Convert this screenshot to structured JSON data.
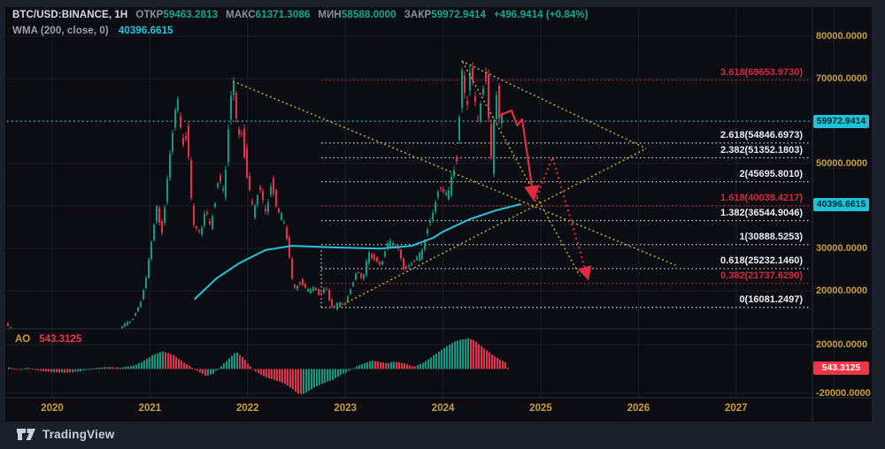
{
  "header": {
    "symbol": "BTC/USD:BINANCE, 1H",
    "ohlc": [
      {
        "label": "ОТКР",
        "value": "59463.2813"
      },
      {
        "label": "МАКС",
        "value": "61371.3086"
      },
      {
        "label": "МИН",
        "value": "58588.0000"
      },
      {
        "label": "ЗАКР",
        "value": "59972.9414"
      }
    ],
    "change": "+496.9414 (+0.84%)",
    "indicator": {
      "name": "WMA (200, close, 0)",
      "value": "40396.6615"
    }
  },
  "ao_panel": {
    "label": "AO",
    "value": "543.3125",
    "badge": "543.3125",
    "scale": [
      {
        "text": "20000.0000",
        "v": 20000
      },
      {
        "text": "-20000.0000",
        "v": -20000
      }
    ]
  },
  "price_scale": {
    "labels": [
      {
        "text": "80000.0000",
        "p": 80000
      },
      {
        "text": "70000.0000",
        "p": 70000
      },
      {
        "text": "50000.0000",
        "p": 50000
      },
      {
        "text": "30000.0000",
        "p": 30000
      },
      {
        "text": "20000.0000",
        "p": 20000
      }
    ],
    "close_badge": {
      "text": "59972.9414",
      "p": 59972.9414
    },
    "wma_badge": {
      "text": "40396.6615",
      "p": 40396.6615
    }
  },
  "time_axis": {
    "years": [
      {
        "label": "2020",
        "year": 2020
      },
      {
        "label": "2021",
        "year": 2021
      },
      {
        "label": "2022",
        "year": 2022
      },
      {
        "label": "2023",
        "year": 2023
      },
      {
        "label": "2024",
        "year": 2024
      },
      {
        "label": "2025",
        "year": 2025
      },
      {
        "label": "2026",
        "year": 2026
      },
      {
        "label": "2027",
        "year": 2027
      }
    ]
  },
  "watermark": {
    "brand": "TradingView"
  },
  "colors": {
    "background": "#0b0d12",
    "outer": "#1b202b",
    "grid": "#1c202c",
    "candle_up": "#0f9a81",
    "candle_down": "#e5314a",
    "wma": "#27c3de",
    "gold_axis": "#c99e3e",
    "teal_value": "#12a88e",
    "fib_white": "#eceef2",
    "fib_red": "#cf2b40",
    "trendline_yellow": "#b3a42c",
    "arrow_red": "#e02b42",
    "close_badge_bg": "#1cc1da",
    "ao_badge_bg": "#f23645"
  },
  "chart_data": {
    "type": "candlestick",
    "title": "BTC/USD:BINANCE",
    "interval": "1H",
    "x_axis_years": [
      2020,
      2021,
      2022,
      2023,
      2024,
      2025,
      2026,
      2027
    ],
    "price_axis_range": [
      11800,
      80000
    ],
    "current_price": 59972.9414,
    "price_keypoints": [
      [
        2019.45,
        13800
      ],
      [
        2019.62,
        10000
      ],
      [
        2019.8,
        8300
      ],
      [
        2019.95,
        7200
      ],
      [
        2020.05,
        9500
      ],
      [
        2020.13,
        10300
      ],
      [
        2020.22,
        5000
      ],
      [
        2020.35,
        9200
      ],
      [
        2020.5,
        9100
      ],
      [
        2020.62,
        9300
      ],
      [
        2020.72,
        11500
      ],
      [
        2020.82,
        13500
      ],
      [
        2020.9,
        17000
      ],
      [
        2020.97,
        23000
      ],
      [
        2021.02,
        32000
      ],
      [
        2021.07,
        40000
      ],
      [
        2021.12,
        34000
      ],
      [
        2021.18,
        46000
      ],
      [
        2021.23,
        56000
      ],
      [
        2021.28,
        64800
      ],
      [
        2021.33,
        55000
      ],
      [
        2021.38,
        58000
      ],
      [
        2021.44,
        37000
      ],
      [
        2021.52,
        32000
      ],
      [
        2021.57,
        39500
      ],
      [
        2021.62,
        35000
      ],
      [
        2021.7,
        47000
      ],
      [
        2021.76,
        43000
      ],
      [
        2021.82,
        61500
      ],
      [
        2021.86,
        69000
      ],
      [
        2021.9,
        58000
      ],
      [
        2021.94,
        57500
      ],
      [
        2022.0,
        47000
      ],
      [
        2022.06,
        37500
      ],
      [
        2022.12,
        44000
      ],
      [
        2022.18,
        39000
      ],
      [
        2022.24,
        45500
      ],
      [
        2022.3,
        39500
      ],
      [
        2022.36,
        36500
      ],
      [
        2022.42,
        30000
      ],
      [
        2022.47,
        20500
      ],
      [
        2022.53,
        22500
      ],
      [
        2022.6,
        20000
      ],
      [
        2022.68,
        20300
      ],
      [
        2022.74,
        19200
      ],
      [
        2022.8,
        21500
      ],
      [
        2022.85,
        16800
      ],
      [
        2022.89,
        15600
      ],
      [
        2022.94,
        17200
      ],
      [
        2023.0,
        16600
      ],
      [
        2023.06,
        21500
      ],
      [
        2023.12,
        24500
      ],
      [
        2023.18,
        22300
      ],
      [
        2023.24,
        28500
      ],
      [
        2023.3,
        28000
      ],
      [
        2023.36,
        26300
      ],
      [
        2023.42,
        30000
      ],
      [
        2023.48,
        31200
      ],
      [
        2023.54,
        29800
      ],
      [
        2023.6,
        26100
      ],
      [
        2023.66,
        25900
      ],
      [
        2023.72,
        27200
      ],
      [
        2023.78,
        28300
      ],
      [
        2023.84,
        34800
      ],
      [
        2023.88,
        37500
      ],
      [
        2023.94,
        43800
      ],
      [
        2024.0,
        42300
      ],
      [
        2024.06,
        43000
      ],
      [
        2024.1,
        47500
      ],
      [
        2024.14,
        52000
      ],
      [
        2024.17,
        63000
      ],
      [
        2024.2,
        73700
      ],
      [
        2024.24,
        62000
      ],
      [
        2024.28,
        70500
      ],
      [
        2024.32,
        64500
      ],
      [
        2024.36,
        61000
      ],
      [
        2024.4,
        66500
      ],
      [
        2024.44,
        71500
      ],
      [
        2024.47,
        62000
      ],
      [
        2024.5,
        49500
      ],
      [
        2024.53,
        62000
      ],
      [
        2024.56,
        67000
      ],
      [
        2024.585,
        56000
      ],
      [
        2024.6,
        59972.94
      ]
    ],
    "wma_keypoints": [
      [
        2021.46,
        18100
      ],
      [
        2021.68,
        22900
      ],
      [
        2021.91,
        26450
      ],
      [
        2022.18,
        29580
      ],
      [
        2022.45,
        30600
      ],
      [
        2022.91,
        30200
      ],
      [
        2023.36,
        29950
      ],
      [
        2023.68,
        30600
      ],
      [
        2023.9,
        32500
      ],
      [
        2024.0,
        33950
      ],
      [
        2024.27,
        36850
      ],
      [
        2024.54,
        38940
      ],
      [
        2024.79,
        40396.66
      ]
    ],
    "ao_keypoints": [
      [
        2019.55,
        1500
      ],
      [
        2019.65,
        -800
      ],
      [
        2019.74,
        1200
      ],
      [
        2019.87,
        -1500
      ],
      [
        2020.01,
        -2600
      ],
      [
        2020.15,
        -3000
      ],
      [
        2020.28,
        -1800
      ],
      [
        2020.42,
        800
      ],
      [
        2020.55,
        1600
      ],
      [
        2020.69,
        1100
      ],
      [
        2020.82,
        2600
      ],
      [
        2020.92,
        6000
      ],
      [
        2021.01,
        10500
      ],
      [
        2021.12,
        14000
      ],
      [
        2021.23,
        11000
      ],
      [
        2021.32,
        6000
      ],
      [
        2021.44,
        500
      ],
      [
        2021.5,
        -2500
      ],
      [
        2021.57,
        -5600
      ],
      [
        2021.64,
        -3500
      ],
      [
        2021.71,
        1500
      ],
      [
        2021.8,
        8000
      ],
      [
        2021.87,
        13500
      ],
      [
        2021.93,
        10000
      ],
      [
        2022.03,
        1000
      ],
      [
        2022.09,
        -3000
      ],
      [
        2022.18,
        -6500
      ],
      [
        2022.27,
        -8600
      ],
      [
        2022.36,
        -11000
      ],
      [
        2022.46,
        -16000
      ],
      [
        2022.52,
        -20000
      ],
      [
        2022.59,
        -18500
      ],
      [
        2022.68,
        -14000
      ],
      [
        2022.77,
        -11000
      ],
      [
        2022.86,
        -8500
      ],
      [
        2022.95,
        -4500
      ],
      [
        2023.04,
        -1000
      ],
      [
        2023.12,
        2600
      ],
      [
        2023.2,
        5000
      ],
      [
        2023.27,
        6600
      ],
      [
        2023.34,
        5600
      ],
      [
        2023.41,
        4600
      ],
      [
        2023.49,
        5800
      ],
      [
        2023.56,
        5200
      ],
      [
        2023.63,
        3600
      ],
      [
        2023.69,
        1800
      ],
      [
        2023.72,
        2600
      ],
      [
        2023.8,
        5600
      ],
      [
        2023.87,
        9500
      ],
      [
        2023.95,
        14000
      ],
      [
        2024.04,
        19000
      ],
      [
        2024.13,
        23000
      ],
      [
        2024.25,
        25000
      ],
      [
        2024.31,
        23500
      ],
      [
        2024.37,
        19500
      ],
      [
        2024.45,
        14500
      ],
      [
        2024.52,
        10500
      ],
      [
        2024.58,
        7500
      ],
      [
        2024.63,
        5500
      ],
      [
        2024.66,
        543.3125
      ]
    ],
    "fib_levels": [
      {
        "label": "3.618(69653.9730)",
        "price": 69653.973,
        "red": true
      },
      {
        "label": "2.618(54846.6973)",
        "price": 54846.6973,
        "red": false
      },
      {
        "label": "2.382(51352.1803)",
        "price": 51352.1803,
        "red": false
      },
      {
        "label": "2(45695.8010)",
        "price": 45695.801,
        "red": false
      },
      {
        "label": "1.618(40039.4217)",
        "price": 40039.4217,
        "red": true
      },
      {
        "label": "1.382(36544.9046)",
        "price": 36544.9046,
        "red": false
      },
      {
        "label": "1(30888.5253)",
        "price": 30888.5253,
        "red": false
      },
      {
        "label": "0.618(25232.1460)",
        "price": 25232.146,
        "red": false
      },
      {
        "label": "0.382(21737.6290)",
        "price": 21737.629,
        "red": true
      },
      {
        "label": "0(16081.2497)",
        "price": 16081.2497,
        "red": false
      }
    ],
    "fib_anchor": {
      "t": 2022.754,
      "price_from": 16081.2497,
      "price_to": 30888.5253
    },
    "trendlines": [
      {
        "from": [
          2021.85,
          69375
        ],
        "to": [
          2026.38,
          26040
        ]
      },
      {
        "from": [
          2023.02,
          17290
        ],
        "to": [
          2026.08,
          53540
        ]
      },
      {
        "from": [
          2024.19,
          74170
        ],
        "to": [
          2026.08,
          53540
        ]
      },
      {
        "from": [
          2024.2,
          73960
        ],
        "to": [
          2025.4,
          23540
        ]
      }
    ],
    "arrows": {
      "solid_red": [
        [
          2024.57,
          61250
        ],
        [
          2024.7,
          62500
        ],
        [
          2024.76,
          58960
        ],
        [
          2024.81,
          60420
        ],
        [
          2024.92,
          42920
        ]
      ],
      "dotted_red": [
        [
          2024.94,
          41040
        ],
        [
          2025.12,
          51460
        ],
        [
          2025.47,
          23960
        ]
      ]
    }
  }
}
